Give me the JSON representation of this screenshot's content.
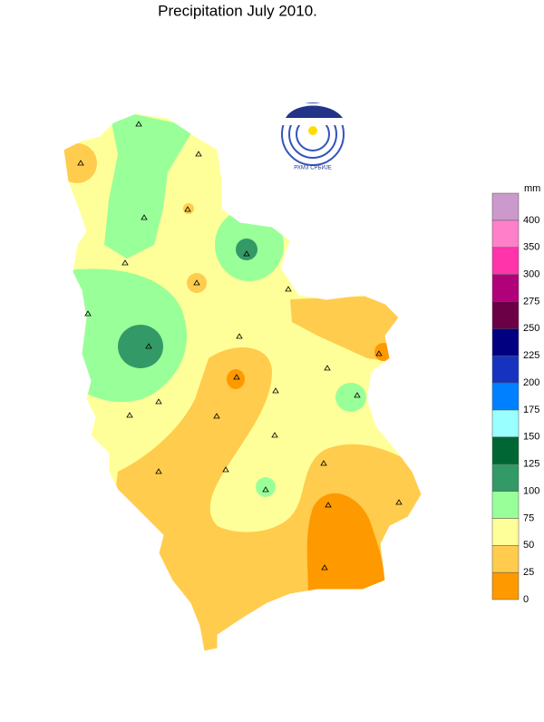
{
  "title": "Precipitation  July  2010.",
  "logo_text": "РХМЗ СРБИЈЕ",
  "legend": {
    "unit": "mm",
    "ticks": [
      0,
      25,
      50,
      75,
      100,
      125,
      150,
      175,
      200,
      225,
      250,
      275,
      300,
      350,
      400
    ],
    "colors": [
      "#ff9900",
      "#ffcc4d",
      "#ffff99",
      "#99ff99",
      "#339966",
      "#006633",
      "#99ffff",
      "#0080ff",
      "#1633c0",
      "#000080",
      "#6b0046",
      "#b0007a",
      "#ff33aa",
      "#ff80c8",
      "#cc99cc"
    ]
  }
}
